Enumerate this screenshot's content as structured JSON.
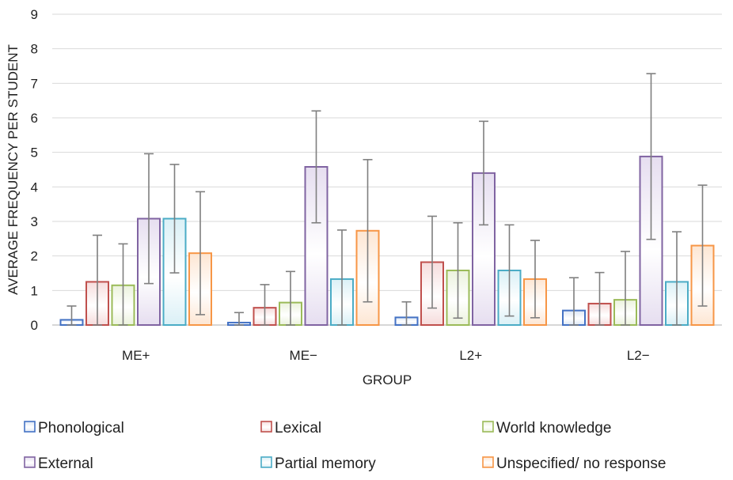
{
  "chart_data": {
    "type": "bar",
    "title": "",
    "xlabel": "GROUP",
    "ylabel": "AVERAGE FREQUENCY PER STUDENT",
    "ylim": [
      0,
      9
    ],
    "yticks": [
      "0",
      "1",
      "2",
      "3",
      "4",
      "5",
      "6",
      "7",
      "8",
      "9"
    ],
    "grid": true,
    "legend_position": "bottom",
    "categories": [
      "ME+",
      "ME−",
      "L2+",
      "L2−"
    ],
    "series": [
      {
        "name": "Phonological",
        "color": "#4472C4",
        "fill_light": "#dce6f5",
        "values": [
          0.15,
          0.07,
          0.22,
          0.42
        ],
        "error": [
          0.4,
          0.29,
          0.45,
          0.95
        ]
      },
      {
        "name": "Lexical",
        "color": "#C0504D",
        "fill_light": "#f6dcdc",
        "values": [
          1.25,
          0.5,
          1.82,
          0.62
        ],
        "error": [
          1.35,
          0.67,
          1.33,
          0.9
        ]
      },
      {
        "name": "World knowledge",
        "color": "#9BBB59",
        "fill_light": "#ebf2dc",
        "values": [
          1.15,
          0.65,
          1.58,
          0.73
        ],
        "error": [
          1.2,
          0.9,
          1.38,
          1.4
        ]
      },
      {
        "name": "External",
        "color": "#8064A2",
        "fill_light": "#e6def0",
        "values": [
          3.08,
          4.58,
          4.4,
          4.88
        ],
        "error": [
          1.88,
          1.62,
          1.5,
          2.4
        ]
      },
      {
        "name": "Partial memory",
        "color": "#4BACC6",
        "fill_light": "#daf0f6",
        "values": [
          3.08,
          1.33,
          1.58,
          1.25
        ],
        "error": [
          1.57,
          1.42,
          1.32,
          1.45
        ]
      },
      {
        "name": "Unspecified/ no response",
        "color": "#F79646",
        "fill_light": "#fde6d3",
        "values": [
          2.08,
          2.73,
          1.33,
          2.3
        ],
        "error": [
          1.78,
          2.06,
          1.12,
          1.75
        ]
      }
    ]
  }
}
